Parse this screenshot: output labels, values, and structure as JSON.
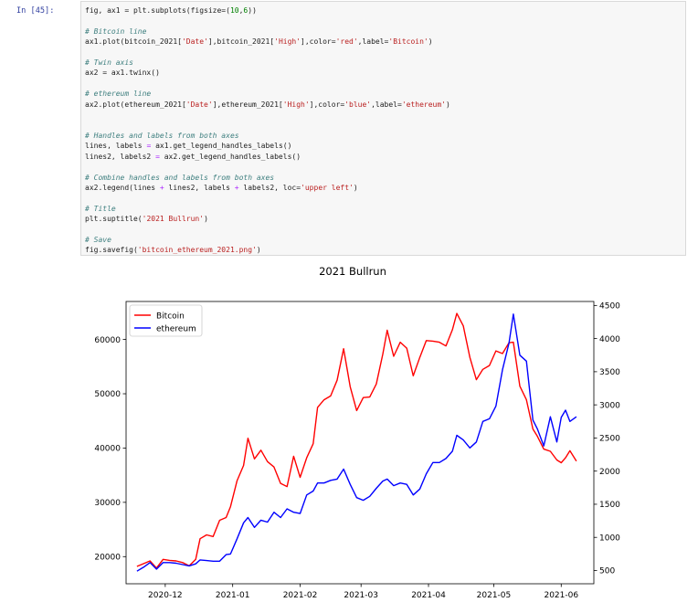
{
  "cell": {
    "prompt": "In [45]:",
    "code": [
      [
        [
          "fig, ax1 = plt.subplots(figsize=(",
          "t"
        ],
        [
          "10",
          "nu"
        ],
        [
          ",",
          "t"
        ],
        [
          "6",
          "nu"
        ],
        [
          "))",
          "t"
        ]
      ],
      [
        [
          "",
          "t"
        ]
      ],
      [
        [
          "# Bitcoin line",
          "cm"
        ]
      ],
      [
        [
          "ax1.plot(bitcoin_2021[",
          "t"
        ],
        [
          "'Date'",
          "st"
        ],
        [
          "],bitcoin_2021[",
          "t"
        ],
        [
          "'High'",
          "st"
        ],
        [
          "],color=",
          "t"
        ],
        [
          "'red'",
          "st"
        ],
        [
          ",label=",
          "t"
        ],
        [
          "'Bitcoin'",
          "st"
        ],
        [
          ")",
          "t"
        ]
      ],
      [
        [
          "",
          "t"
        ]
      ],
      [
        [
          "# Twin axis",
          "cm"
        ]
      ],
      [
        [
          "ax2 = ax1.twinx()",
          "t"
        ]
      ],
      [
        [
          "",
          "t"
        ]
      ],
      [
        [
          "# ethereum line",
          "cm"
        ]
      ],
      [
        [
          "ax2.plot(ethereum_2021[",
          "t"
        ],
        [
          "'Date'",
          "st"
        ],
        [
          "],ethereum_2021[",
          "t"
        ],
        [
          "'High'",
          "st"
        ],
        [
          "],color=",
          "t"
        ],
        [
          "'blue'",
          "st"
        ],
        [
          ",label=",
          "t"
        ],
        [
          "'ethereum'",
          "st"
        ],
        [
          ")",
          "t"
        ]
      ],
      [
        [
          "",
          "t"
        ]
      ],
      [
        [
          "",
          "t"
        ]
      ],
      [
        [
          "# Handles and labels from both axes",
          "cm"
        ]
      ],
      [
        [
          "lines, labels ",
          "t"
        ],
        [
          "=",
          "op"
        ],
        [
          " ax1.get_legend_handles_labels()",
          "t"
        ]
      ],
      [
        [
          "lines2, labels2 ",
          "t"
        ],
        [
          "=",
          "op"
        ],
        [
          " ax2.get_legend_handles_labels()",
          "t"
        ]
      ],
      [
        [
          "",
          "t"
        ]
      ],
      [
        [
          "# Combine handles and labels from both axes",
          "cm"
        ]
      ],
      [
        [
          "ax2.legend(lines ",
          "t"
        ],
        [
          "+",
          "op"
        ],
        [
          " lines2, labels ",
          "t"
        ],
        [
          "+",
          "op"
        ],
        [
          " labels2, loc=",
          "t"
        ],
        [
          "'upper left'",
          "st"
        ],
        [
          ")",
          "t"
        ]
      ],
      [
        [
          "",
          "t"
        ]
      ],
      [
        [
          "# Title",
          "cm"
        ]
      ],
      [
        [
          "plt.suptitle(",
          "t"
        ],
        [
          "'2021 Bullrun'",
          "st"
        ],
        [
          ")",
          "t"
        ]
      ],
      [
        [
          "",
          "t"
        ]
      ],
      [
        [
          "# Save",
          "cm"
        ]
      ],
      [
        [
          "fig.savefig(",
          "t"
        ],
        [
          "'bitcoin_ethereum_2021.png'",
          "st"
        ],
        [
          ")",
          "t"
        ]
      ]
    ]
  },
  "colors": {
    "bitcoin": "#ff0000",
    "ethereum": "#0000ff"
  },
  "chart_data": {
    "type": "line",
    "title": "2021 Bullrun",
    "xlabel": "",
    "ylabel": "",
    "x_tick_labels": [
      "2020-12",
      "2021-01",
      "2021-02",
      "2021-03",
      "2021-04",
      "2021-05",
      "2021-06"
    ],
    "x_range": [
      "2020-11-13",
      "2021-06-16"
    ],
    "ylim_left": [
      15000,
      67000
    ],
    "yticks_left": [
      20000,
      30000,
      40000,
      50000,
      60000
    ],
    "ylim_right": [
      300,
      4560
    ],
    "yticks_right": [
      500,
      1000,
      1500,
      2000,
      2500,
      3000,
      3500,
      4000,
      4500
    ],
    "legend": {
      "location": "upper left",
      "entries": [
        "Bitcoin",
        "ethereum"
      ]
    },
    "grid": false,
    "series": [
      {
        "name": "Bitcoin",
        "axis": "left",
        "color": "red",
        "points": [
          [
            "2020-11-18",
            18200
          ],
          [
            "2020-11-21",
            18700
          ],
          [
            "2020-11-24",
            19200
          ],
          [
            "2020-11-27",
            17900
          ],
          [
            "2020-11-30",
            19500
          ],
          [
            "2020-12-03",
            19300
          ],
          [
            "2020-12-06",
            19200
          ],
          [
            "2020-12-09",
            18900
          ],
          [
            "2020-12-12",
            18300
          ],
          [
            "2020-12-15",
            19500
          ],
          [
            "2020-12-17",
            23300
          ],
          [
            "2020-12-20",
            24000
          ],
          [
            "2020-12-23",
            23700
          ],
          [
            "2020-12-26",
            26700
          ],
          [
            "2020-12-29",
            27200
          ],
          [
            "2020-12-31",
            29200
          ],
          [
            "2021-01-03",
            34000
          ],
          [
            "2021-01-06",
            36800
          ],
          [
            "2021-01-08",
            41800
          ],
          [
            "2021-01-11",
            38000
          ],
          [
            "2021-01-14",
            39600
          ],
          [
            "2021-01-17",
            37500
          ],
          [
            "2021-01-20",
            36500
          ],
          [
            "2021-01-23",
            33500
          ],
          [
            "2021-01-26",
            32900
          ],
          [
            "2021-01-29",
            38500
          ],
          [
            "2021-02-01",
            34600
          ],
          [
            "2021-02-04",
            38200
          ],
          [
            "2021-02-07",
            40800
          ],
          [
            "2021-02-09",
            47500
          ],
          [
            "2021-02-12",
            48900
          ],
          [
            "2021-02-15",
            49600
          ],
          [
            "2021-02-18",
            52500
          ],
          [
            "2021-02-21",
            58300
          ],
          [
            "2021-02-24",
            51300
          ],
          [
            "2021-02-27",
            46900
          ],
          [
            "2021-03-02",
            49300
          ],
          [
            "2021-03-05",
            49400
          ],
          [
            "2021-03-08",
            51800
          ],
          [
            "2021-03-11",
            57300
          ],
          [
            "2021-03-13",
            61700
          ],
          [
            "2021-03-16",
            56900
          ],
          [
            "2021-03-19",
            59500
          ],
          [
            "2021-03-22",
            58400
          ],
          [
            "2021-03-25",
            53300
          ],
          [
            "2021-03-28",
            56700
          ],
          [
            "2021-03-31",
            59800
          ],
          [
            "2021-04-03",
            59700
          ],
          [
            "2021-04-06",
            59500
          ],
          [
            "2021-04-09",
            58800
          ],
          [
            "2021-04-12",
            61800
          ],
          [
            "2021-04-14",
            64800
          ],
          [
            "2021-04-17",
            62500
          ],
          [
            "2021-04-20",
            56700
          ],
          [
            "2021-04-23",
            52600
          ],
          [
            "2021-04-26",
            54500
          ],
          [
            "2021-04-29",
            55200
          ],
          [
            "2021-05-02",
            57900
          ],
          [
            "2021-05-05",
            57400
          ],
          [
            "2021-05-08",
            59400
          ],
          [
            "2021-05-10",
            59500
          ],
          [
            "2021-05-13",
            51400
          ],
          [
            "2021-05-16",
            48900
          ],
          [
            "2021-05-19",
            43500
          ],
          [
            "2021-05-21",
            42200
          ],
          [
            "2021-05-24",
            39800
          ],
          [
            "2021-05-27",
            39400
          ],
          [
            "2021-05-30",
            37800
          ],
          [
            "2021-06-01",
            37300
          ],
          [
            "2021-06-03",
            38200
          ],
          [
            "2021-06-05",
            39500
          ],
          [
            "2021-06-08",
            37600
          ]
        ]
      },
      {
        "name": "ethereum",
        "axis": "right",
        "color": "blue",
        "points": [
          [
            "2020-11-18",
            490
          ],
          [
            "2020-11-21",
            550
          ],
          [
            "2020-11-24",
            620
          ],
          [
            "2020-11-27",
            520
          ],
          [
            "2020-11-30",
            620
          ],
          [
            "2020-12-03",
            620
          ],
          [
            "2020-12-06",
            610
          ],
          [
            "2020-12-09",
            590
          ],
          [
            "2020-12-12",
            570
          ],
          [
            "2020-12-15",
            600
          ],
          [
            "2020-12-17",
            660
          ],
          [
            "2020-12-20",
            650
          ],
          [
            "2020-12-23",
            640
          ],
          [
            "2020-12-26",
            640
          ],
          [
            "2020-12-29",
            740
          ],
          [
            "2020-12-31",
            750
          ],
          [
            "2021-01-03",
            980
          ],
          [
            "2021-01-06",
            1220
          ],
          [
            "2021-01-08",
            1300
          ],
          [
            "2021-01-11",
            1150
          ],
          [
            "2021-01-14",
            1260
          ],
          [
            "2021-01-17",
            1230
          ],
          [
            "2021-01-20",
            1380
          ],
          [
            "2021-01-23",
            1300
          ],
          [
            "2021-01-26",
            1430
          ],
          [
            "2021-01-29",
            1380
          ],
          [
            "2021-02-01",
            1360
          ],
          [
            "2021-02-04",
            1640
          ],
          [
            "2021-02-07",
            1700
          ],
          [
            "2021-02-09",
            1820
          ],
          [
            "2021-02-12",
            1820
          ],
          [
            "2021-02-15",
            1860
          ],
          [
            "2021-02-18",
            1880
          ],
          [
            "2021-02-21",
            2030
          ],
          [
            "2021-02-24",
            1800
          ],
          [
            "2021-02-27",
            1600
          ],
          [
            "2021-03-02",
            1560
          ],
          [
            "2021-03-05",
            1620
          ],
          [
            "2021-03-08",
            1740
          ],
          [
            "2021-03-11",
            1850
          ],
          [
            "2021-03-13",
            1880
          ],
          [
            "2021-03-16",
            1780
          ],
          [
            "2021-03-19",
            1820
          ],
          [
            "2021-03-22",
            1800
          ],
          [
            "2021-03-25",
            1640
          ],
          [
            "2021-03-28",
            1730
          ],
          [
            "2021-03-31",
            1960
          ],
          [
            "2021-04-03",
            2130
          ],
          [
            "2021-04-06",
            2130
          ],
          [
            "2021-04-09",
            2190
          ],
          [
            "2021-04-12",
            2300
          ],
          [
            "2021-04-14",
            2540
          ],
          [
            "2021-04-17",
            2470
          ],
          [
            "2021-04-20",
            2350
          ],
          [
            "2021-04-23",
            2440
          ],
          [
            "2021-04-26",
            2750
          ],
          [
            "2021-04-29",
            2790
          ],
          [
            "2021-05-02",
            2980
          ],
          [
            "2021-05-05",
            3530
          ],
          [
            "2021-05-08",
            3930
          ],
          [
            "2021-05-10",
            4370
          ],
          [
            "2021-05-13",
            3750
          ],
          [
            "2021-05-16",
            3660
          ],
          [
            "2021-05-19",
            2770
          ],
          [
            "2021-05-21",
            2640
          ],
          [
            "2021-05-24",
            2380
          ],
          [
            "2021-05-27",
            2820
          ],
          [
            "2021-05-30",
            2440
          ],
          [
            "2021-06-01",
            2810
          ],
          [
            "2021-06-03",
            2920
          ],
          [
            "2021-06-05",
            2750
          ],
          [
            "2021-06-08",
            2820
          ]
        ]
      }
    ]
  }
}
